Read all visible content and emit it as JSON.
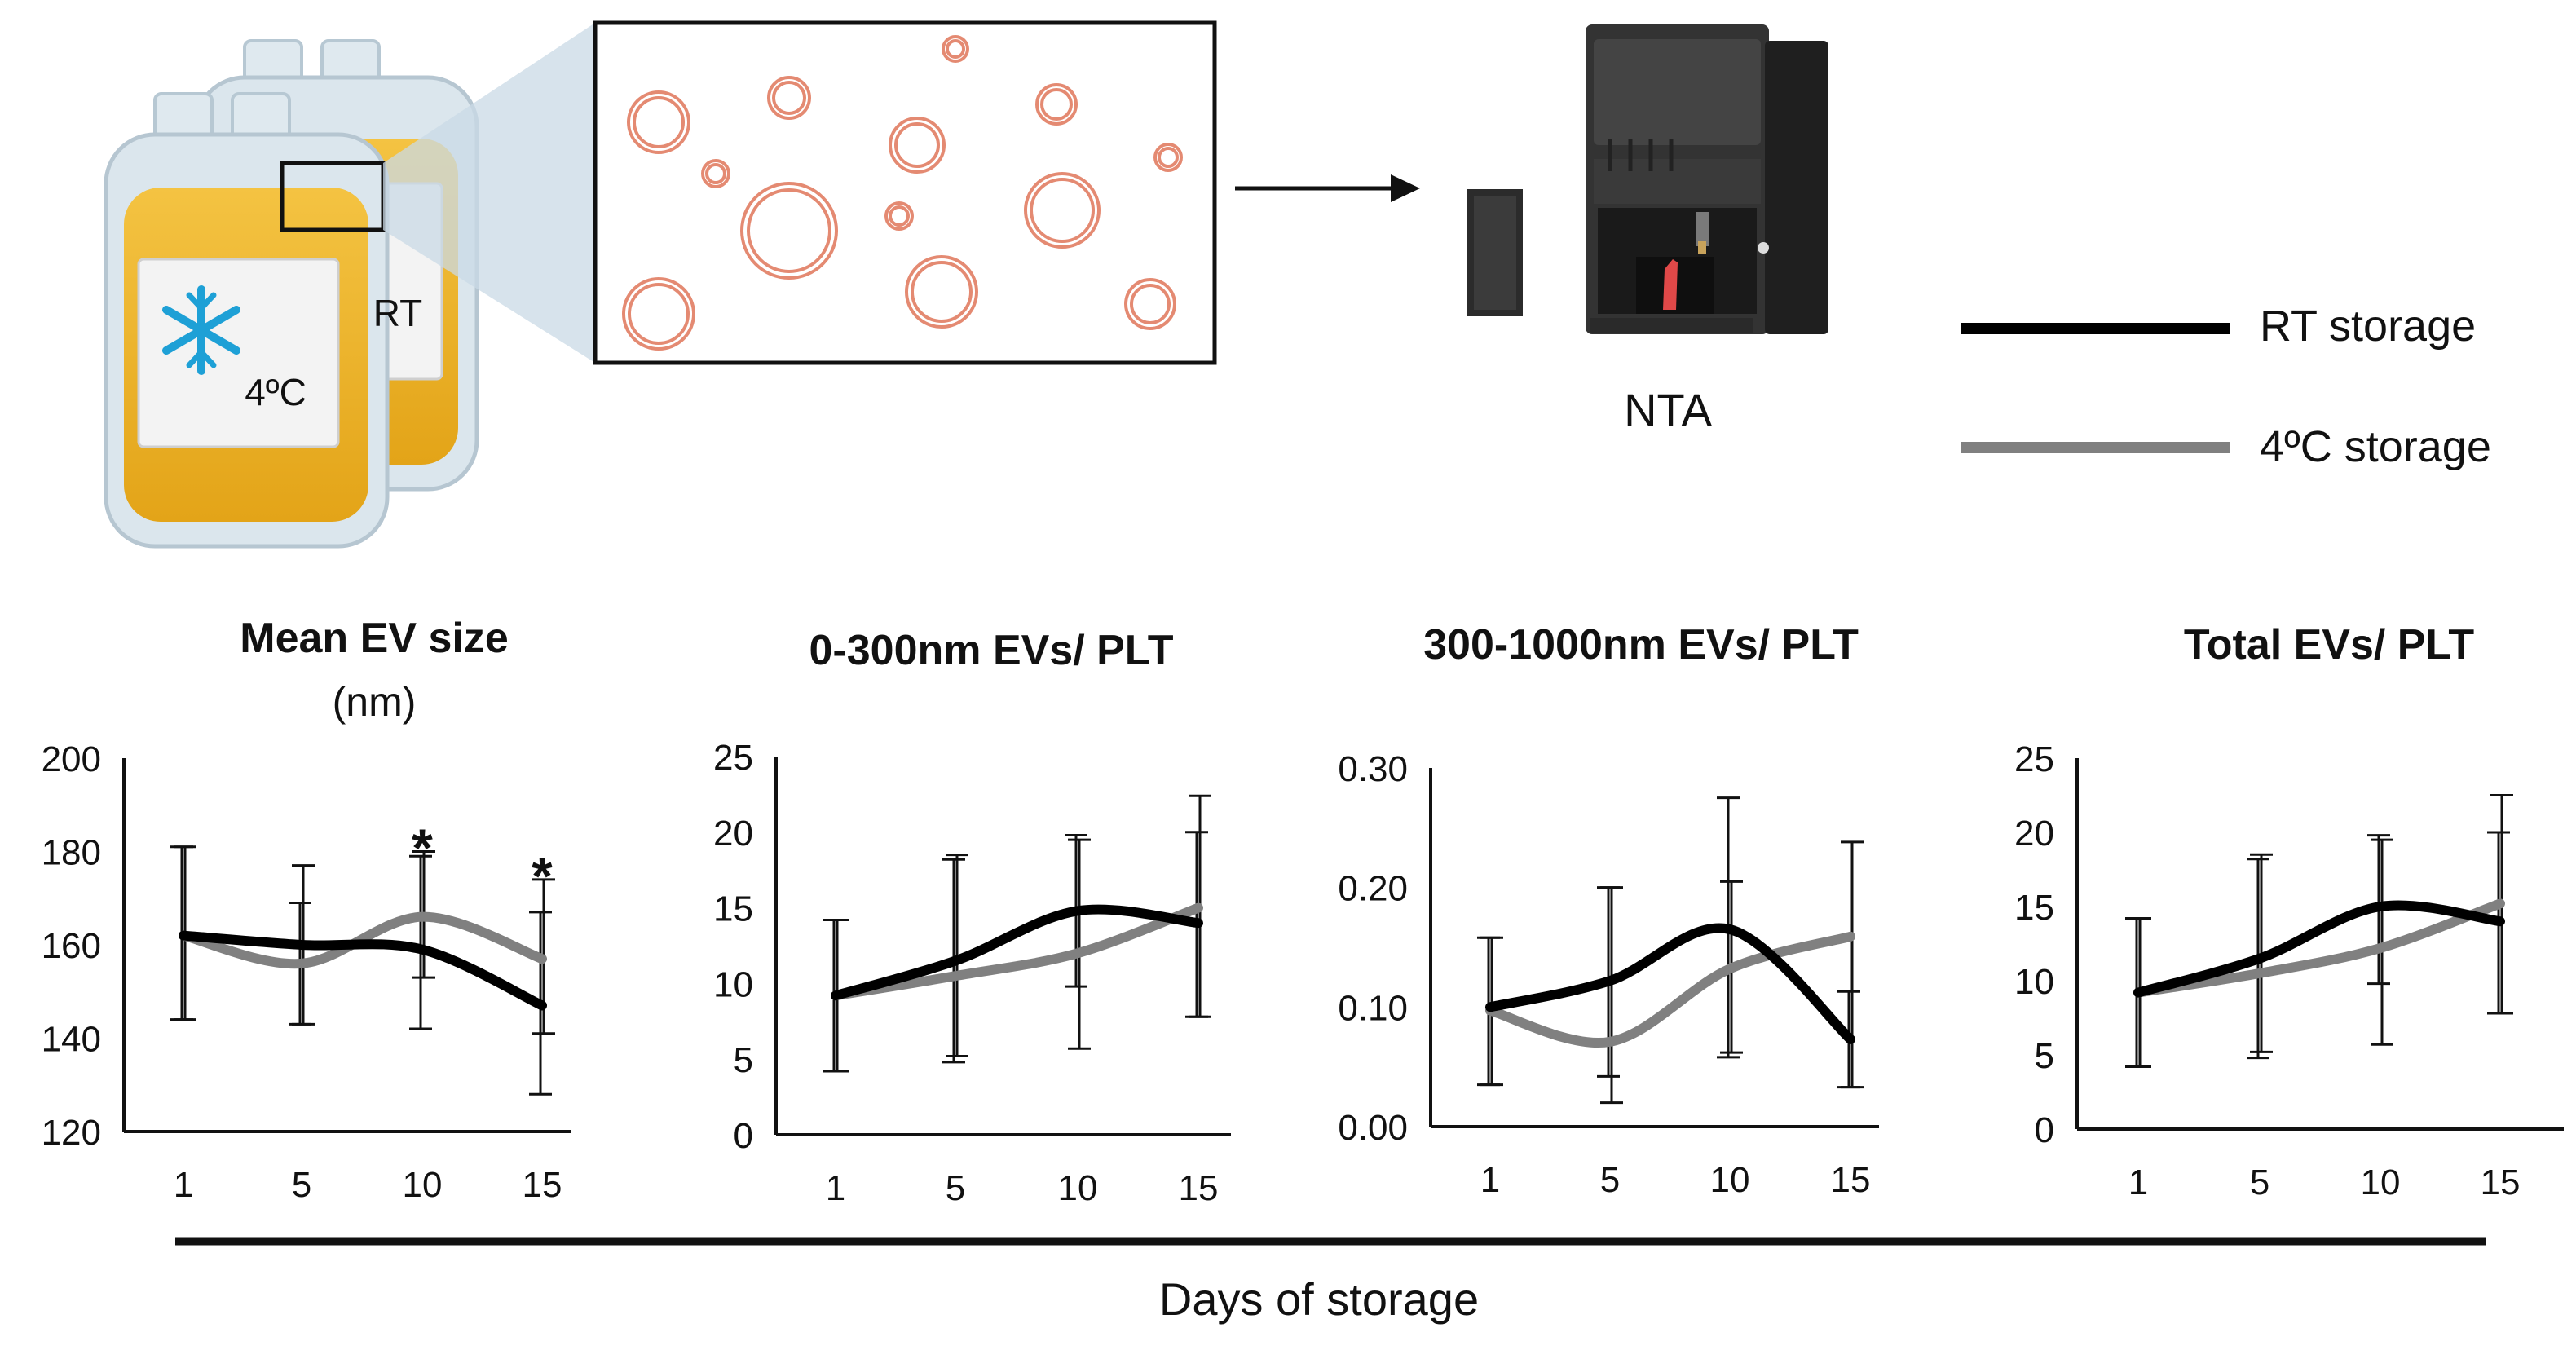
{
  "illustration": {
    "bag_front_label": "4ºC",
    "bag_back_label": "RT",
    "instrument_label": "NTA"
  },
  "legend": {
    "items": [
      {
        "label": "RT storage",
        "color": "#000000"
      },
      {
        "label": "4ºC storage",
        "color": "#808080"
      }
    ]
  },
  "shared_xlabel": "Days of storage",
  "chart_data": [
    {
      "type": "line",
      "title": "Mean EV size",
      "subtitle": "(nm)",
      "x": [
        1,
        5,
        10,
        15
      ],
      "xticks": [
        "1",
        "5",
        "10",
        "15"
      ],
      "ylim": [
        120,
        200
      ],
      "yticks": [
        120,
        140,
        160,
        180,
        200
      ],
      "ytick_labels": [
        "120",
        "140",
        "160",
        "180",
        "200"
      ],
      "series": [
        {
          "color": "#000000",
          "values": [
            162,
            160,
            159,
            147
          ],
          "err_low": [
            144,
            143,
            142,
            128
          ],
          "err_high": [
            181,
            169,
            179,
            167
          ]
        },
        {
          "color": "#808080",
          "values": [
            162,
            156,
            166,
            157
          ],
          "err_low": [
            144,
            143,
            153,
            141
          ],
          "err_high": [
            181,
            177,
            180,
            174
          ]
        }
      ],
      "annotations": [
        {
          "x": 10,
          "y": 182,
          "text": "*"
        },
        {
          "x": 15,
          "y": 176,
          "text": "*"
        }
      ]
    },
    {
      "type": "line",
      "title": "0-300nm EVs/ PLT",
      "x": [
        1,
        5,
        10,
        15
      ],
      "xticks": [
        "1",
        "5",
        "10",
        "15"
      ],
      "ylim": [
        0,
        25
      ],
      "yticks": [
        0,
        5,
        10,
        15,
        20,
        25
      ],
      "ytick_labels": [
        "0",
        "5",
        "10",
        "15",
        "20",
        "25"
      ],
      "series": [
        {
          "color": "#000000",
          "values": [
            9.2,
            11.5,
            14.8,
            14
          ],
          "err_low": [
            4.2,
            4.8,
            9.8,
            7.8
          ],
          "err_high": [
            14.2,
            18.2,
            19.8,
            20
          ]
        },
        {
          "color": "#808080",
          "values": [
            9.2,
            10.5,
            12,
            15
          ],
          "err_low": [
            4.2,
            5.2,
            5.7,
            7.8
          ],
          "err_high": [
            14.2,
            18.5,
            19.5,
            22.4
          ]
        }
      ]
    },
    {
      "type": "line",
      "title": "300-1000nm EVs/ PLT",
      "x": [
        1,
        5,
        10,
        15
      ],
      "xticks": [
        "1",
        "5",
        "10",
        "15"
      ],
      "ylim": [
        0,
        0.3
      ],
      "yticks": [
        0,
        0.1,
        0.2,
        0.3
      ],
      "ytick_labels": [
        "0.00",
        "0.10",
        "0.20",
        "0.30"
      ],
      "series": [
        {
          "color": "#000000",
          "values": [
            0.1,
            0.122,
            0.165,
            0.073
          ],
          "err_low": [
            0.035,
            0.042,
            0.058,
            0.033
          ],
          "err_high": [
            0.158,
            0.2,
            0.275,
            0.113
          ]
        },
        {
          "color": "#808080",
          "values": [
            0.097,
            0.071,
            0.132,
            0.159
          ],
          "err_low": [
            0.035,
            0.02,
            0.062,
            0.033
          ],
          "err_high": [
            0.158,
            0.2,
            0.205,
            0.238
          ]
        }
      ]
    },
    {
      "type": "line",
      "title": "Total EVs/ PLT",
      "x": [
        1,
        5,
        10,
        15
      ],
      "xticks": [
        "1",
        "5",
        "10",
        "15"
      ],
      "ylim": [
        0,
        25
      ],
      "yticks": [
        0,
        5,
        10,
        15,
        20,
        25
      ],
      "ytick_labels": [
        "0",
        "5",
        "10",
        "15",
        "20",
        "25"
      ],
      "series": [
        {
          "color": "#000000",
          "values": [
            9.2,
            11.5,
            15,
            14
          ],
          "err_low": [
            4.2,
            4.8,
            9.8,
            7.8
          ],
          "err_high": [
            14.2,
            18.2,
            19.8,
            20
          ]
        },
        {
          "color": "#808080",
          "values": [
            9.2,
            10.5,
            12.2,
            15.2
          ],
          "err_low": [
            4.2,
            5.2,
            5.7,
            7.8
          ],
          "err_high": [
            14.2,
            18.5,
            19.5,
            22.5
          ]
        }
      ]
    }
  ]
}
